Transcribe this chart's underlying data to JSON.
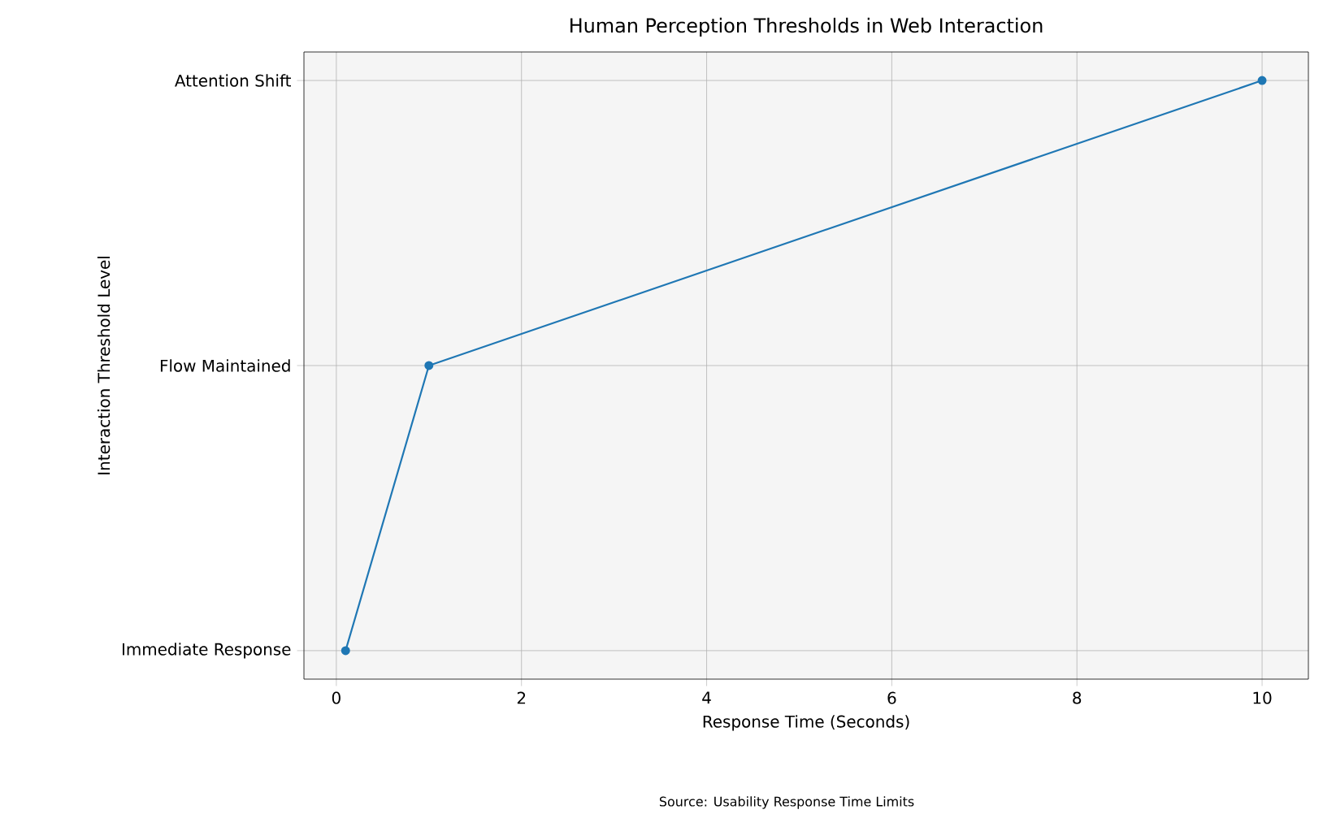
{
  "chart_data": {
    "type": "line",
    "orientation": "horizontal",
    "title": "Human Perception Thresholds in Web Interaction",
    "xlabel": "Response Time (Seconds)",
    "ylabel": "Interaction Threshold Level",
    "categories": [
      "Attention Shift",
      "Flow Maintained",
      "Immediate Response"
    ],
    "series": [
      {
        "color": "#1f77b4",
        "values": [
          10,
          1,
          0.1
        ]
      }
    ],
    "xlim": [
      -0.35,
      10.5
    ],
    "xticks": [
      0,
      2,
      4,
      6,
      8,
      10
    ],
    "grid": true,
    "marker": "circle",
    "line_style": "solid",
    "annotations": [
      "Source: Usability Response Time Limits"
    ]
  }
}
